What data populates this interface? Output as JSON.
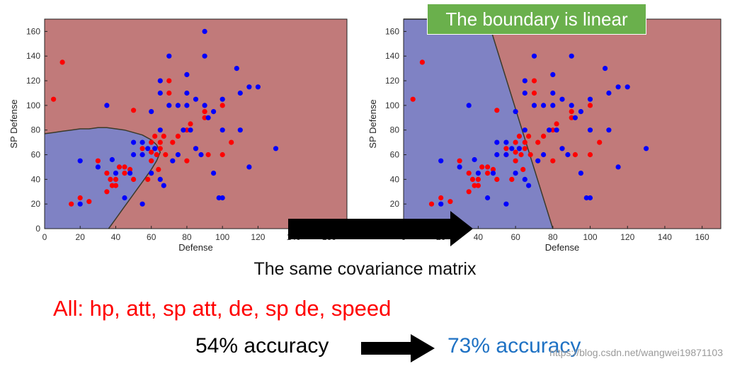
{
  "callout": "The boundary is linear",
  "caption": "The same covariance matrix",
  "features_text": "All: hp, att, sp att, de, sp de, speed",
  "accuracy_before": "54% accuracy",
  "accuracy_after": "73% accuracy",
  "watermark": "https://blog.csdn.net/wangwei19871103",
  "colors": {
    "class_red_region": "#c17a7a",
    "class_blue_region": "#7f82c4",
    "point_red": "#ff0000",
    "point_blue": "#0000ff",
    "arrow": "#000000"
  },
  "chart_data": [
    {
      "type": "scatter",
      "xlabel": "Defense",
      "ylabel": "SP Defense",
      "xlim": [
        0,
        170
      ],
      "ylim": [
        0,
        170
      ],
      "x_ticks": [
        0,
        20,
        40,
        60,
        80,
        100,
        120,
        140,
        160
      ],
      "y_ticks": [
        0,
        20,
        40,
        60,
        80,
        100,
        120,
        140,
        160
      ],
      "boundary": "quadratic",
      "blue_region": [
        [
          0,
          77
        ],
        [
          5,
          78
        ],
        [
          10,
          79
        ],
        [
          15,
          80
        ],
        [
          20,
          81
        ],
        [
          25,
          81
        ],
        [
          30,
          82
        ],
        [
          35,
          82
        ],
        [
          40,
          81
        ],
        [
          45,
          80
        ],
        [
          50,
          78
        ],
        [
          55,
          76
        ],
        [
          60,
          72
        ],
        [
          63,
          68
        ],
        [
          65,
          62
        ],
        [
          63,
          55
        ],
        [
          60,
          48
        ],
        [
          56,
          40
        ],
        [
          52,
          32
        ],
        [
          48,
          24
        ],
        [
          44,
          16
        ],
        [
          40,
          8
        ],
        [
          36,
          0
        ],
        [
          0,
          0
        ]
      ],
      "series": [
        {
          "name": "",
          "color": "red",
          "x": [
            10,
            5,
            15,
            20,
            25,
            30,
            35,
            35,
            37,
            38,
            40,
            40,
            42,
            45,
            45,
            48,
            50,
            50,
            55,
            55,
            58,
            60,
            60,
            60,
            62,
            62,
            63,
            64,
            65,
            65,
            67,
            68,
            70,
            70,
            72,
            75,
            80,
            80,
            82,
            85,
            90,
            90,
            92,
            100,
            100,
            105
          ],
          "y": [
            135,
            105,
            20,
            25,
            22,
            55,
            30,
            45,
            40,
            35,
            40,
            35,
            50,
            45,
            50,
            48,
            40,
            96,
            60,
            65,
            40,
            70,
            62,
            55,
            65,
            75,
            60,
            48,
            65,
            70,
            75,
            60,
            120,
            110,
            70,
            75,
            55,
            80,
            85,
            65,
            95,
            90,
            60,
            100,
            60,
            70
          ]
        },
        {
          "name": "",
          "color": "blue",
          "x": [
            20,
            20,
            30,
            35,
            38,
            40,
            45,
            48,
            50,
            50,
            55,
            55,
            55,
            58,
            60,
            60,
            62,
            65,
            65,
            65,
            65,
            67,
            70,
            70,
            72,
            75,
            75,
            78,
            80,
            80,
            80,
            82,
            85,
            85,
            88,
            90,
            90,
            90,
            92,
            95,
            95,
            98,
            100,
            100,
            100,
            108,
            110,
            110,
            115,
            115,
            120,
            130
          ],
          "y": [
            20,
            55,
            50,
            100,
            56,
            45,
            25,
            45,
            70,
            60,
            70,
            60,
            20,
            65,
            95,
            45,
            65,
            120,
            110,
            80,
            40,
            35,
            140,
            100,
            55,
            100,
            60,
            80,
            125,
            110,
            100,
            80,
            105,
            65,
            60,
            160,
            140,
            100,
            90,
            95,
            45,
            25,
            105,
            80,
            25,
            130,
            110,
            80,
            115,
            50,
            115,
            65
          ]
        }
      ]
    },
    {
      "type": "scatter",
      "xlabel": "Defense",
      "ylabel": "SP Defense",
      "xlim": [
        0,
        170
      ],
      "ylim": [
        0,
        170
      ],
      "x_ticks": [
        0,
        20,
        40,
        60,
        80,
        100,
        120,
        140,
        160
      ],
      "y_ticks": [
        0,
        20,
        40,
        60,
        80,
        100,
        120,
        140,
        160
      ],
      "boundary": "linear",
      "blue_region": [
        [
          0,
          170
        ],
        [
          45,
          170
        ],
        [
          80,
          0
        ],
        [
          0,
          0
        ]
      ],
      "series": [
        {
          "name": "",
          "color": "red",
          "x": [
            10,
            5,
            15,
            20,
            25,
            30,
            35,
            35,
            37,
            38,
            40,
            40,
            42,
            45,
            45,
            48,
            50,
            50,
            55,
            55,
            58,
            60,
            60,
            60,
            62,
            62,
            63,
            64,
            65,
            65,
            67,
            68,
            70,
            70,
            72,
            75,
            80,
            80,
            82,
            85,
            90,
            90,
            92,
            100,
            100,
            105
          ],
          "y": [
            135,
            105,
            20,
            25,
            22,
            55,
            30,
            45,
            40,
            35,
            40,
            35,
            50,
            45,
            50,
            48,
            40,
            96,
            60,
            65,
            40,
            70,
            62,
            55,
            65,
            75,
            60,
            48,
            65,
            70,
            75,
            60,
            120,
            110,
            70,
            75,
            55,
            80,
            85,
            65,
            95,
            90,
            60,
            100,
            60,
            70
          ]
        },
        {
          "name": "",
          "color": "blue",
          "x": [
            20,
            20,
            30,
            35,
            38,
            40,
            45,
            48,
            50,
            50,
            55,
            55,
            55,
            58,
            60,
            60,
            62,
            65,
            65,
            65,
            65,
            67,
            70,
            70,
            72,
            75,
            75,
            78,
            80,
            80,
            80,
            82,
            85,
            85,
            88,
            90,
            90,
            90,
            92,
            95,
            95,
            98,
            100,
            100,
            100,
            108,
            110,
            110,
            115,
            115,
            120,
            130
          ],
          "y": [
            20,
            55,
            50,
            100,
            56,
            45,
            25,
            45,
            70,
            60,
            70,
            60,
            20,
            65,
            95,
            45,
            65,
            120,
            110,
            80,
            40,
            35,
            140,
            100,
            55,
            100,
            60,
            80,
            125,
            110,
            100,
            80,
            105,
            65,
            60,
            160,
            140,
            100,
            90,
            95,
            45,
            25,
            105,
            80,
            25,
            130,
            110,
            80,
            115,
            50,
            115,
            65
          ]
        }
      ]
    }
  ]
}
